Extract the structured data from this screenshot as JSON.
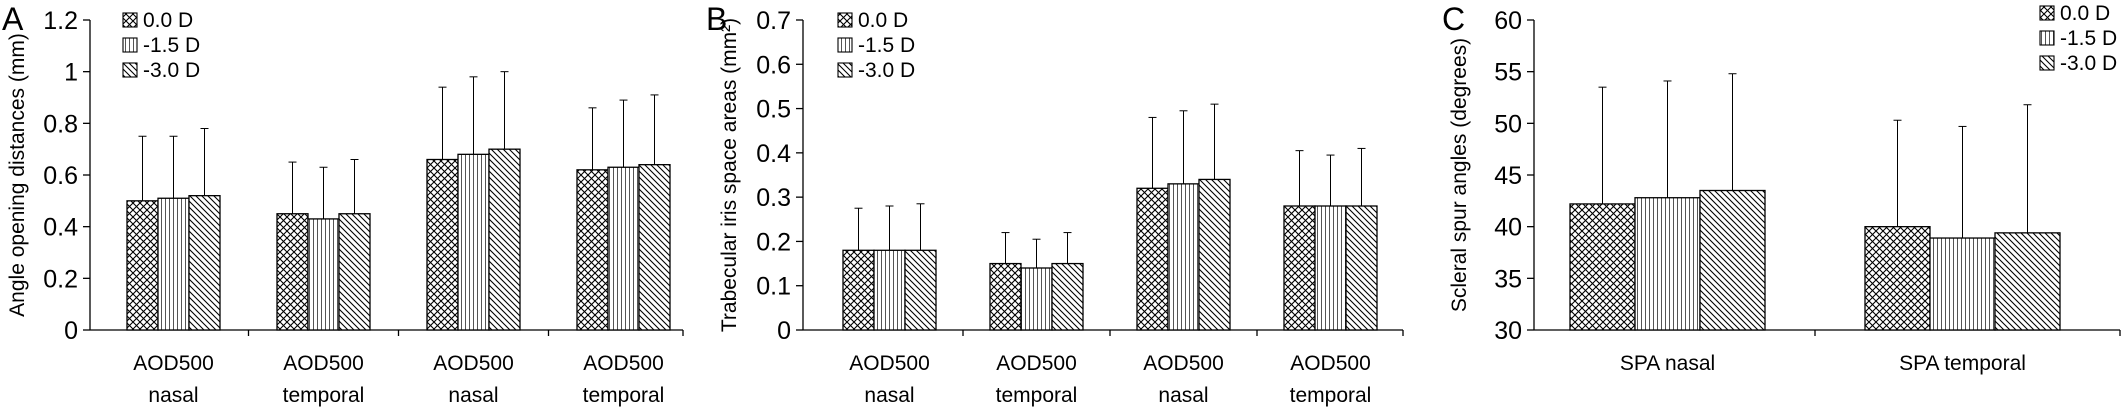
{
  "figure": {
    "panels": [
      "A",
      "B",
      "C"
    ]
  },
  "legend_labels": [
    "0.0 D",
    "-1.5 D",
    "-3.0 D"
  ],
  "chart_data": [
    {
      "panel": "A",
      "type": "bar",
      "ylabel": "Angle opening distances (mm)",
      "xlabel": "",
      "ylim": [
        0,
        1.2
      ],
      "yticks": [
        "0",
        "0.2",
        "0.4",
        "0.6",
        "0.8",
        "1",
        "1.2"
      ],
      "categories": [
        [
          "AOD500",
          "nasal"
        ],
        [
          "AOD500",
          "temporal"
        ],
        [
          "AOD500",
          "nasal"
        ],
        [
          "AOD500",
          "temporal"
        ]
      ],
      "series": [
        {
          "name": "0.0 D",
          "values": [
            0.5,
            0.45,
            0.66,
            0.62
          ],
          "errors": [
            0.25,
            0.2,
            0.28,
            0.24
          ]
        },
        {
          "name": "-1.5 D",
          "values": [
            0.51,
            0.43,
            0.68,
            0.63
          ],
          "errors": [
            0.24,
            0.2,
            0.3,
            0.26
          ]
        },
        {
          "name": "-3.0 D",
          "values": [
            0.52,
            0.45,
            0.7,
            0.64
          ],
          "errors": [
            0.26,
            0.21,
            0.3,
            0.27
          ]
        }
      ],
      "legend_position": "top-left",
      "grid": false
    },
    {
      "panel": "B",
      "type": "bar",
      "ylabel": "Trabecular iris space areas (mm²)",
      "xlabel": "",
      "ylim": [
        0,
        0.7
      ],
      "yticks": [
        "0",
        "0.1",
        "0.2",
        "0.3",
        "0.4",
        "0.5",
        "0.6",
        "0.7"
      ],
      "categories": [
        [
          "AOD500",
          "nasal"
        ],
        [
          "AOD500",
          "temporal"
        ],
        [
          "AOD500",
          "nasal"
        ],
        [
          "AOD500",
          "temporal"
        ]
      ],
      "series": [
        {
          "name": "0.0 D",
          "values": [
            0.18,
            0.15,
            0.32,
            0.28
          ],
          "errors": [
            0.095,
            0.07,
            0.16,
            0.125
          ]
        },
        {
          "name": "-1.5 D",
          "values": [
            0.18,
            0.14,
            0.33,
            0.28
          ],
          "errors": [
            0.1,
            0.065,
            0.165,
            0.115
          ]
        },
        {
          "name": "-3.0 D",
          "values": [
            0.18,
            0.15,
            0.34,
            0.28
          ],
          "errors": [
            0.105,
            0.07,
            0.17,
            0.13
          ]
        }
      ],
      "legend_position": "top-left",
      "grid": false
    },
    {
      "panel": "C",
      "type": "bar",
      "ylabel": "Scleral spur angles (degrees)",
      "xlabel": "",
      "ylim": [
        30,
        60
      ],
      "yticks": [
        "30",
        "35",
        "40",
        "45",
        "50",
        "55",
        "60"
      ],
      "categories": [
        [
          "SPA nasal"
        ],
        [
          "SPA temporal"
        ]
      ],
      "series": [
        {
          "name": "0.0 D",
          "values": [
            42.2,
            40.0
          ],
          "errors": [
            11.3,
            10.3
          ]
        },
        {
          "name": "-1.5 D",
          "values": [
            42.8,
            38.9
          ],
          "errors": [
            11.3,
            10.8
          ]
        },
        {
          "name": "-3.0 D",
          "values": [
            43.5,
            39.4
          ],
          "errors": [
            11.3,
            12.4
          ]
        }
      ],
      "legend_position": "top-right",
      "grid": false
    }
  ]
}
